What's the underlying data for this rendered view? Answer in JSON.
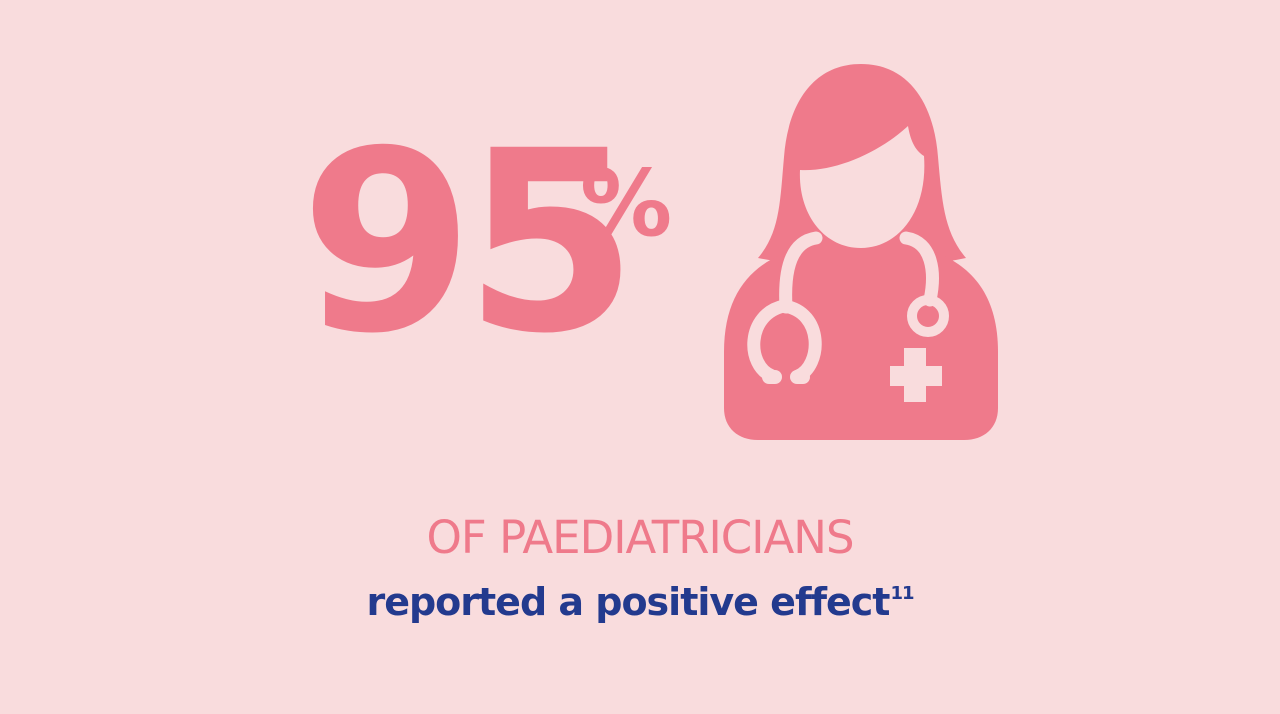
{
  "stat": {
    "number": "95",
    "unit": "%"
  },
  "caption": {
    "main": "OF PAEDIATRICIANS",
    "sub": "reported a positive effect",
    "reference": "11"
  },
  "icons": {
    "doctor": "female-doctor-stethoscope-icon"
  },
  "colors": {
    "background": "#f9dcdd",
    "accent": "#ef7a8b",
    "text_blue": "#233a8e"
  }
}
